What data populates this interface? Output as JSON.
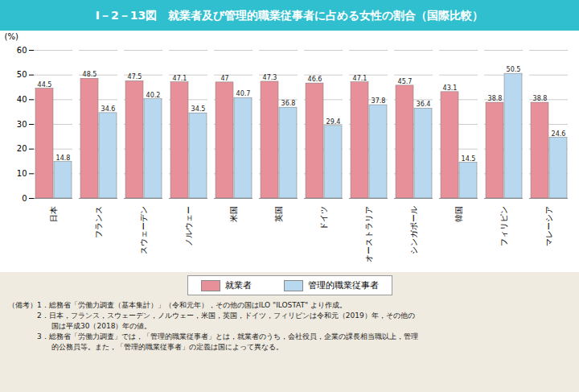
{
  "chart_data": {
    "type": "bar",
    "title": "I－2－13図　就業者及び管理的職業従事者に占める女性の割合（国際比較）",
    "ylabel": "(%)",
    "categories": [
      "日本",
      "フランス",
      "スウェーデン",
      "ノルウェー",
      "米国",
      "英国",
      "ドイツ",
      "オーストラリア",
      "シンガポール",
      "韓国",
      "フィリピン",
      "マレーシア"
    ],
    "series": [
      {
        "name": "就業者",
        "color": "#E8909A",
        "values": [
          44.5,
          48.5,
          47.5,
          47.1,
          47.0,
          47.3,
          46.6,
          47.1,
          45.7,
          43.1,
          38.8,
          38.8
        ]
      },
      {
        "name": "管理的職業従事者",
        "color": "#B8D8F0",
        "values": [
          14.8,
          34.6,
          40.2,
          34.5,
          40.7,
          36.8,
          29.4,
          37.8,
          36.4,
          14.5,
          50.5,
          24.6
        ]
      }
    ],
    "ylim": [
      0,
      60
    ],
    "yticks": [
      0,
      10,
      20,
      30,
      40,
      50,
      60
    ],
    "grid": true,
    "data_labels": true,
    "legend": "bottom",
    "annotations": [
      "（備考）1．総務省「労働力調査（基本集計）」（令和元年），その他の国はILO \"ILOSTAT\" より作成。",
      "　　　　2．日本，フランス，スウェーデン，ノルウェー，米国，英国，ドイツ，フィリピンは令和元（2019）年，その他の",
      "　　　　　　国は平成30（2018）年の値。",
      "　　　　3．総務省「労働力調査」では，「管理的職業従事者」とは，就業者のうち，会社役員，企業の課長相当職以上，管理",
      "　　　　　　的公務員等。また，「管理的職業従事者」の定義は国によって異なる。"
    ]
  }
}
